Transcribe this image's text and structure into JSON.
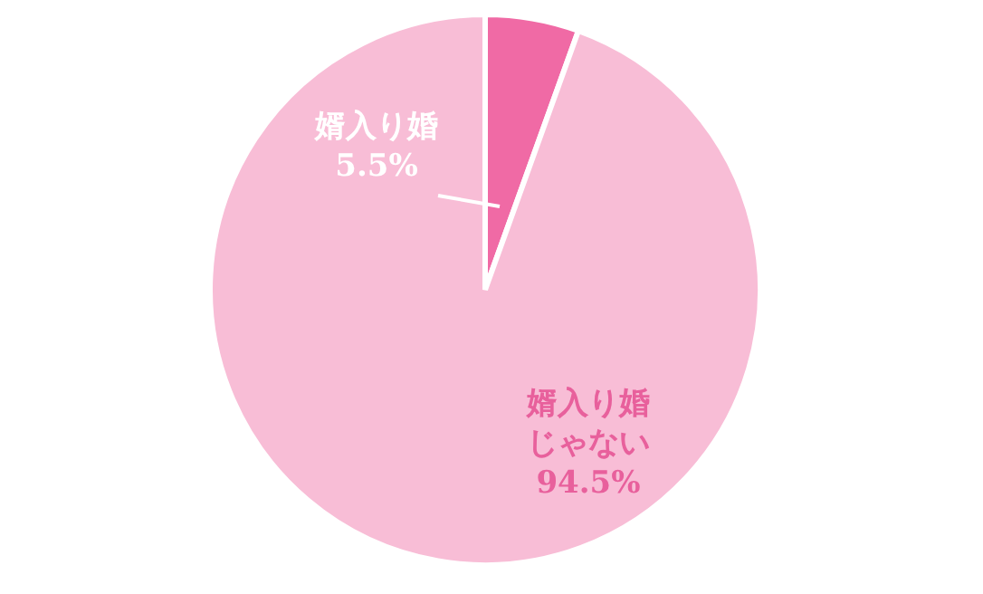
{
  "chart_data": {
    "type": "pie",
    "categories": [
      "婿入り婚",
      "婿入り婚じゃない"
    ],
    "values": [
      5.5,
      94.5
    ],
    "colors": [
      "#f06aa5",
      "#f8bdd6"
    ],
    "value_labels": [
      "5.5%",
      "94.5%"
    ]
  }
}
